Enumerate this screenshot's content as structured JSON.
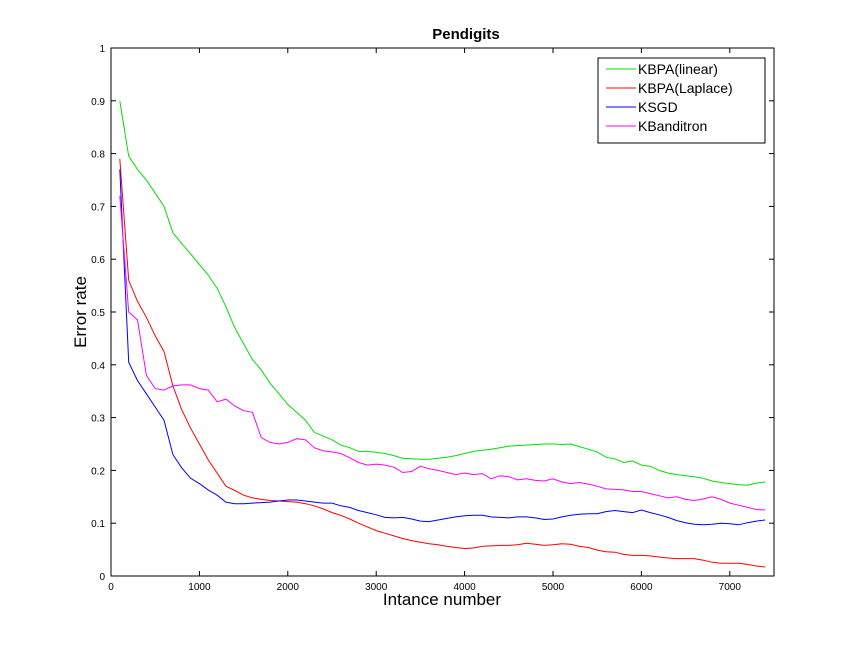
{
  "chart_data": {
    "type": "line",
    "title": "Pendigits",
    "xlabel": "Intance number",
    "ylabel": "Error rate",
    "xlim": [
      0,
      7500
    ],
    "ylim": [
      0,
      1
    ],
    "xticks": [
      0,
      1000,
      2000,
      3000,
      4000,
      5000,
      6000,
      7000
    ],
    "xtick_labels": [
      "0",
      "1000",
      "2000",
      "3000",
      "4000",
      "5000",
      "6000",
      "7000"
    ],
    "yticks": [
      0,
      0.1,
      0.2,
      0.3,
      0.4,
      0.5,
      0.6,
      0.7,
      0.8,
      0.9,
      1
    ],
    "ytick_labels": [
      "0",
      "0.1",
      "0.2",
      "0.3",
      "0.4",
      "0.5",
      "0.6",
      "0.7",
      "0.8",
      "0.9",
      "1"
    ],
    "grid": false,
    "legend_position": "top-right",
    "x": [
      100,
      200,
      300,
      400,
      500,
      600,
      700,
      800,
      900,
      1000,
      1100,
      1200,
      1300,
      1400,
      1500,
      1600,
      1700,
      1800,
      1900,
      2000,
      2100,
      2200,
      2300,
      2400,
      2500,
      2600,
      2700,
      2800,
      2900,
      3000,
      3100,
      3200,
      3300,
      3400,
      3500,
      3600,
      3700,
      3800,
      3900,
      4000,
      4100,
      4200,
      4300,
      4400,
      4500,
      4600,
      4700,
      4800,
      4900,
      5000,
      5100,
      5200,
      5300,
      5400,
      5500,
      5600,
      5700,
      5800,
      5900,
      6000,
      6100,
      6200,
      6300,
      6400,
      6500,
      6600,
      6700,
      6800,
      6900,
      7000,
      7100,
      7200,
      7300,
      7400
    ],
    "series": [
      {
        "name": "KBPA(linear)",
        "color": "#00e000",
        "values": [
          0.9,
          0.795,
          0.77,
          0.75,
          0.725,
          0.7,
          0.65,
          0.63,
          0.61,
          0.59,
          0.57,
          0.545,
          0.51,
          0.47,
          0.44,
          0.41,
          0.39,
          0.365,
          0.345,
          0.325,
          0.31,
          0.295,
          0.272,
          0.265,
          0.258,
          0.248,
          0.243,
          0.236,
          0.236,
          0.234,
          0.232,
          0.228,
          0.223,
          0.222,
          0.221,
          0.221,
          0.223,
          0.225,
          0.228,
          0.232,
          0.236,
          0.238,
          0.24,
          0.243,
          0.246,
          0.247,
          0.248,
          0.249,
          0.25,
          0.25,
          0.249,
          0.25,
          0.245,
          0.24,
          0.235,
          0.225,
          0.222,
          0.215,
          0.218,
          0.21,
          0.208,
          0.2,
          0.195,
          0.192,
          0.19,
          0.188,
          0.185,
          0.18,
          0.177,
          0.175,
          0.173,
          0.172,
          0.176,
          0.178
        ]
      },
      {
        "name": "KBPA(Laplace)",
        "color": "#ff0000",
        "values": [
          0.79,
          0.56,
          0.52,
          0.49,
          0.455,
          0.425,
          0.36,
          0.315,
          0.28,
          0.25,
          0.22,
          0.195,
          0.17,
          0.162,
          0.153,
          0.148,
          0.145,
          0.143,
          0.142,
          0.141,
          0.14,
          0.137,
          0.133,
          0.127,
          0.12,
          0.115,
          0.108,
          0.1,
          0.093,
          0.086,
          0.081,
          0.076,
          0.071,
          0.067,
          0.064,
          0.061,
          0.059,
          0.056,
          0.054,
          0.052,
          0.053,
          0.056,
          0.057,
          0.058,
          0.058,
          0.059,
          0.062,
          0.06,
          0.058,
          0.059,
          0.061,
          0.06,
          0.056,
          0.054,
          0.049,
          0.046,
          0.045,
          0.041,
          0.039,
          0.039,
          0.038,
          0.036,
          0.034,
          0.033,
          0.033,
          0.033,
          0.03,
          0.026,
          0.024,
          0.024,
          0.024,
          0.022,
          0.019,
          0.017
        ]
      },
      {
        "name": "KSGD",
        "color": "#0000ff",
        "values": [
          0.77,
          0.405,
          0.37,
          0.345,
          0.32,
          0.295,
          0.23,
          0.205,
          0.185,
          0.175,
          0.163,
          0.153,
          0.14,
          0.137,
          0.137,
          0.138,
          0.139,
          0.14,
          0.142,
          0.144,
          0.144,
          0.142,
          0.14,
          0.138,
          0.138,
          0.133,
          0.13,
          0.124,
          0.12,
          0.116,
          0.111,
          0.11,
          0.111,
          0.108,
          0.104,
          0.103,
          0.106,
          0.109,
          0.112,
          0.114,
          0.115,
          0.115,
          0.112,
          0.111,
          0.11,
          0.112,
          0.112,
          0.11,
          0.107,
          0.108,
          0.112,
          0.115,
          0.117,
          0.118,
          0.118,
          0.122,
          0.124,
          0.122,
          0.12,
          0.125,
          0.12,
          0.116,
          0.111,
          0.105,
          0.101,
          0.098,
          0.097,
          0.098,
          0.1,
          0.099,
          0.097,
          0.101,
          0.104,
          0.106
        ]
      },
      {
        "name": "KBanditron",
        "color": "#ff00ff",
        "values": [
          0.72,
          0.5,
          0.485,
          0.38,
          0.355,
          0.352,
          0.36,
          0.362,
          0.362,
          0.355,
          0.352,
          0.33,
          0.335,
          0.322,
          0.313,
          0.31,
          0.262,
          0.253,
          0.25,
          0.253,
          0.26,
          0.258,
          0.243,
          0.237,
          0.235,
          0.232,
          0.224,
          0.215,
          0.21,
          0.212,
          0.21,
          0.206,
          0.196,
          0.198,
          0.208,
          0.203,
          0.2,
          0.196,
          0.192,
          0.195,
          0.192,
          0.194,
          0.184,
          0.19,
          0.188,
          0.182,
          0.184,
          0.181,
          0.18,
          0.184,
          0.178,
          0.175,
          0.177,
          0.174,
          0.17,
          0.165,
          0.164,
          0.163,
          0.16,
          0.16,
          0.156,
          0.152,
          0.148,
          0.15,
          0.145,
          0.143,
          0.146,
          0.15,
          0.145,
          0.138,
          0.134,
          0.13,
          0.126,
          0.125
        ]
      }
    ]
  }
}
